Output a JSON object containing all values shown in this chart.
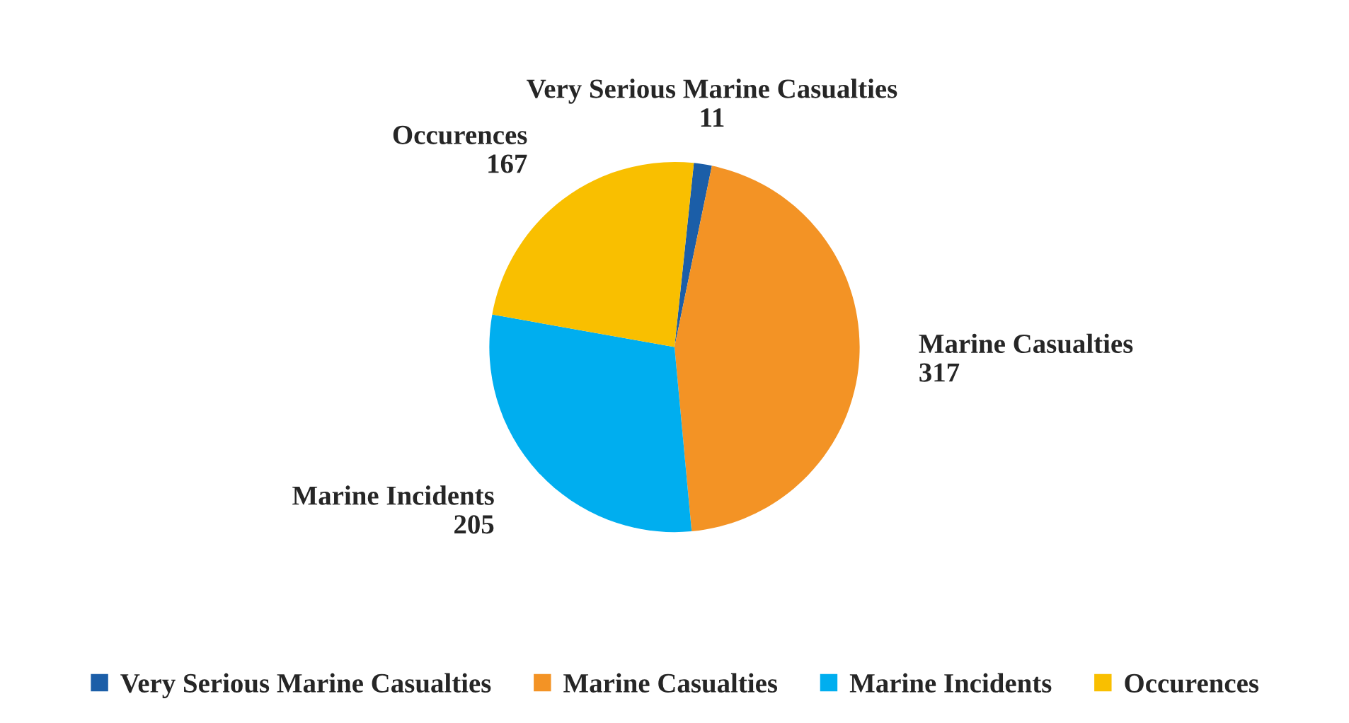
{
  "chart_data": {
    "type": "pie",
    "categories": [
      "Very Serious Marine Casualties",
      "Marine Casualties",
      "Marine Incidents",
      "Occurences"
    ],
    "values": [
      11,
      317,
      205,
      167
    ],
    "colors": [
      "#1b5ea8",
      "#f39325",
      "#00aeef",
      "#f9bf00"
    ],
    "data_labels": true,
    "legend": "bottom"
  }
}
